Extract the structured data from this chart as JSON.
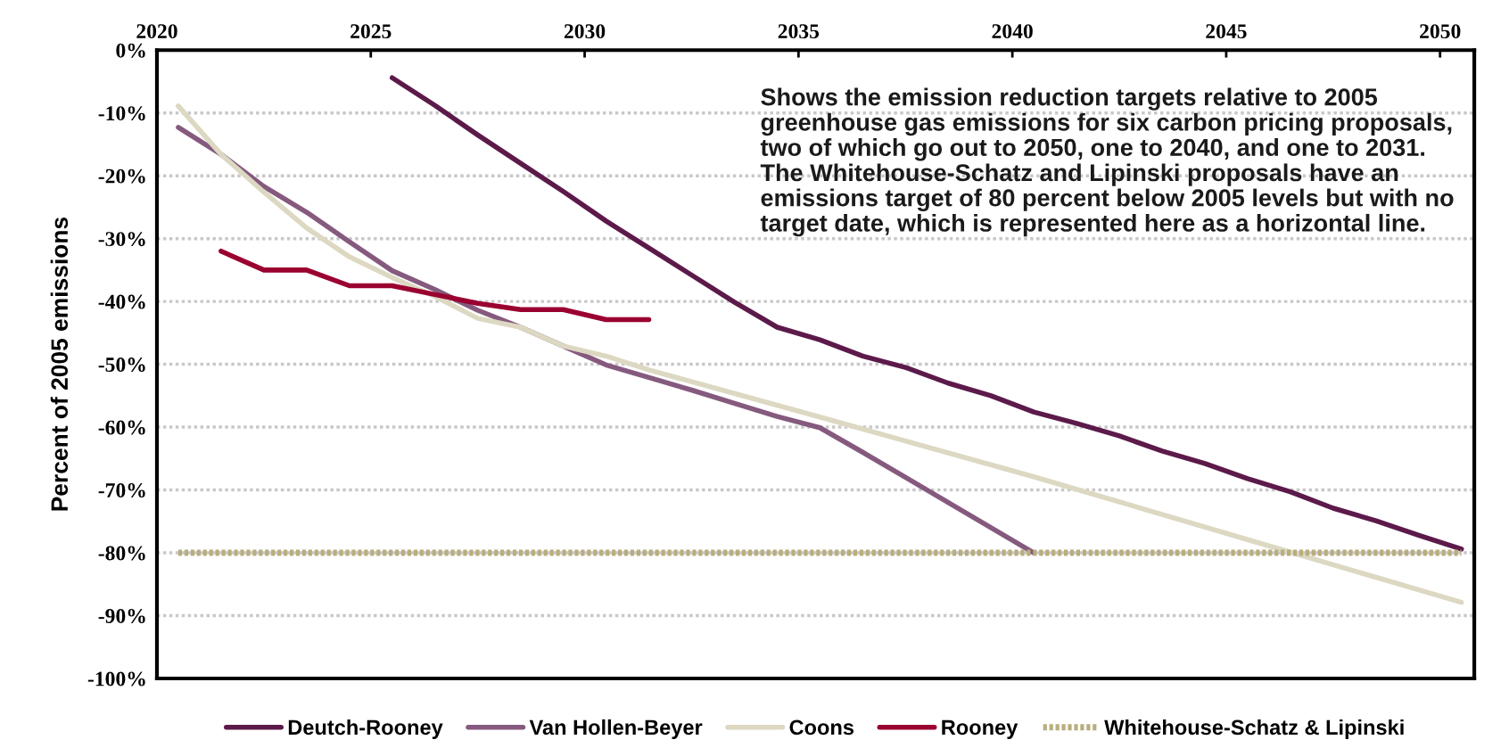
{
  "chart_data": {
    "type": "line",
    "ylabel": "Percent of 2005 emissions",
    "annotations": [
      "Shows the emission reduction targets relative to 2005 greenhouse gas emissions for six carbon pricing proposals, two of which go out to 2050, one to 2040, and one to 2031. The Whitehouse-Schatz and Lipinski proposals have an emissions target of 80 percent below 2005 levels but with no target date, which is represented here as a horizontal line."
    ],
    "xlim": [
      2020,
      2050.8
    ],
    "xticks": [
      2020,
      2025,
      2030,
      2035,
      2040,
      2045,
      2050
    ],
    "ylim": [
      -100,
      0
    ],
    "yticks": [
      {
        "value": 0,
        "label": "0%"
      },
      {
        "value": -10,
        "label": "-10%"
      },
      {
        "value": -20,
        "label": "-20%"
      },
      {
        "value": -30,
        "label": "-30%"
      },
      {
        "value": -40,
        "label": "-40%"
      },
      {
        "value": -50,
        "label": "-50%"
      },
      {
        "value": -60,
        "label": "-60%"
      },
      {
        "value": -70,
        "label": "-70%"
      },
      {
        "value": -80,
        "label": "-80%"
      },
      {
        "value": -90,
        "label": "-90%"
      },
      {
        "value": -100,
        "label": "-100%"
      }
    ],
    "grid": "y",
    "legend": "bottom",
    "marker": "none",
    "series": [
      {
        "name": "Deutch-Rooney",
        "color": "#5c1a4a",
        "x": [
          2025.5,
          2026.5,
          2027.5,
          2028.5,
          2029.5,
          2030.5,
          2031.5,
          2032.5,
          2033.5,
          2034.5,
          2035.5,
          2036.5,
          2037.5,
          2038.5,
          2039.5,
          2040.5,
          2041.5,
          2042.5,
          2043.5,
          2044.5,
          2045.5,
          2046.5,
          2047.5,
          2048.5,
          2049.5,
          2050.5
        ],
        "values": [
          -4.4,
          -8.8,
          -13.5,
          -18,
          -22.5,
          -27.2,
          -31.5,
          -35.8,
          -40.1,
          -44.1,
          -46.1,
          -48.7,
          -50.5,
          -53,
          -55,
          -57.6,
          -59.4,
          -61.4,
          -63.8,
          -65.8,
          -68.2,
          -70.3,
          -72.9,
          -74.9,
          -77.2,
          -79.4
        ]
      },
      {
        "name": "Van Hollen-Beyer",
        "color": "#855a7e",
        "x": [
          2020.5,
          2021.5,
          2022.5,
          2023.5,
          2024.5,
          2025.5,
          2026.5,
          2027.5,
          2028.5,
          2029.5,
          2030.5,
          2031.5,
          2032.5,
          2033.5,
          2034.5,
          2035.5,
          2036.5,
          2037.5,
          2038.5,
          2039.5,
          2040.5
        ],
        "values": [
          -12.3,
          -16.6,
          -21.7,
          -25.8,
          -30.5,
          -35.1,
          -38.1,
          -41.4,
          -44.1,
          -47.1,
          -50.1,
          -52.1,
          -54.1,
          -56.2,
          -58.3,
          -60.1,
          -64,
          -68,
          -72,
          -76,
          -80
        ]
      },
      {
        "name": "Coons",
        "color": "#dcd8c2",
        "x": [
          2020.5,
          2021.5,
          2022.5,
          2023.5,
          2024.5,
          2025.5,
          2026.5,
          2027.5,
          2028.5,
          2029.5,
          2030.5,
          2031.5,
          2035.5,
          2040.5,
          2045.5,
          2050.5
        ],
        "values": [
          -8.9,
          -16.6,
          -22.6,
          -28.3,
          -32.9,
          -36.2,
          -39.2,
          -42.7,
          -44.1,
          -47.1,
          -48.7,
          -50.9,
          -58.4,
          -67.9,
          -77.9,
          -87.9
        ]
      },
      {
        "name": "Rooney",
        "color": "#9a0030",
        "x": [
          2021.5,
          2022.5,
          2023.5,
          2024.5,
          2025.5,
          2026.5,
          2027.5,
          2028.5,
          2029.5,
          2030.5,
          2031.5
        ],
        "values": [
          -32,
          -35,
          -35,
          -37.5,
          -37.5,
          -38.9,
          -40.3,
          -41.3,
          -41.3,
          -42.9,
          -42.9
        ]
      },
      {
        "name": "Whitehouse-Schatz & Lipinski",
        "color": "#b8ad7d",
        "line_style": "dotted",
        "x": [
          2020.5,
          2050.5
        ],
        "values": [
          -80,
          -80
        ]
      }
    ]
  }
}
